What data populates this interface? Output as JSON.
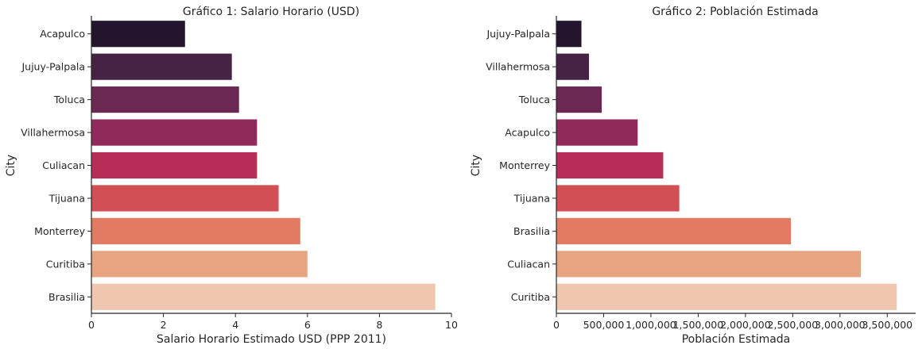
{
  "chart_data": [
    {
      "type": "bar",
      "orientation": "horizontal",
      "title": "Gráfico 1: Salario Horario (USD)",
      "xlabel": "Salario Horario Estimado USD (PPP 2011)",
      "ylabel": "City",
      "xlim": [
        0,
        10
      ],
      "xticks": [
        0,
        2,
        4,
        6,
        8,
        10
      ],
      "xtick_labels": [
        "0",
        "2",
        "4",
        "6",
        "8",
        "10"
      ],
      "categories": [
        "Acapulco",
        "Jujuy-Palpala",
        "Toluca",
        "Villahermosa",
        "Culiacan",
        "Tijuana",
        "Monterrey",
        "Curitiba",
        "Brasilia"
      ],
      "values": [
        2.6,
        3.9,
        4.1,
        4.6,
        4.6,
        5.2,
        5.8,
        6.0,
        9.55
      ],
      "colors": [
        "#23152e",
        "#462245",
        "#6b2853",
        "#8f2a5a",
        "#b82c58",
        "#d34f56",
        "#e07b61",
        "#e8a380",
        "#efc6ae"
      ],
      "grid": false
    },
    {
      "type": "bar",
      "orientation": "horizontal",
      "title": "Gráfico 2: Población Estimada",
      "xlabel": "Población Estimada",
      "ylabel": "City",
      "xlim": [
        0,
        3800000
      ],
      "xticks": [
        0,
        500000,
        1000000,
        1500000,
        2000000,
        2500000,
        3000000,
        3500000
      ],
      "xtick_labels": [
        "0",
        "500,000",
        "1,000,000",
        "1,500,000",
        "2,000,000",
        "2,500,000",
        "3,000,000",
        "3,500,000"
      ],
      "categories": [
        "Jujuy-Palpala",
        "Villahermosa",
        "Toluca",
        "Acapulco",
        "Monterrey",
        "Tijuana",
        "Brasilia",
        "Culiacan",
        "Curitiba"
      ],
      "values": [
        265000,
        345000,
        480000,
        860000,
        1130000,
        1300000,
        2480000,
        3220000,
        3600000
      ],
      "colors": [
        "#23152e",
        "#462245",
        "#6b2853",
        "#8f2a5a",
        "#b82c58",
        "#d34f56",
        "#e07b61",
        "#e8a380",
        "#efc6ae"
      ],
      "grid": false
    }
  ]
}
